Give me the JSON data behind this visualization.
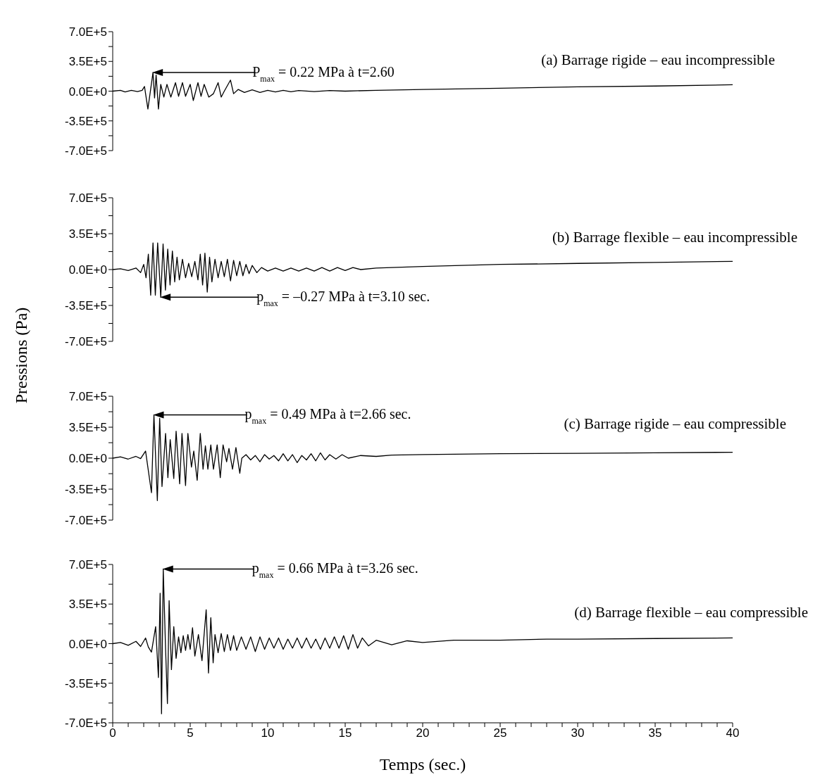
{
  "chart_data": [
    {
      "type": "line",
      "title": "(a) Barrage rigide – eau incompressible",
      "color": "#000000",
      "tick_labels": "y",
      "xlim": [
        0,
        40
      ],
      "x": [
        0,
        0.5,
        0.8,
        1.2,
        1.6,
        1.9,
        2.05,
        2.27,
        2.6,
        2.7,
        2.8,
        2.95,
        3.1,
        3.3,
        3.5,
        3.75,
        4.05,
        4.25,
        4.5,
        4.7,
        5.0,
        5.2,
        5.5,
        5.7,
        5.9,
        6.2,
        6.5,
        6.8,
        7.0,
        7.2,
        7.6,
        7.8,
        8.1,
        8.5,
        9,
        9.5,
        10,
        10.5,
        11,
        11.5,
        12,
        13,
        14,
        15,
        17,
        20,
        25,
        30,
        35,
        40
      ],
      "values": [
        0,
        10000,
        -10000,
        10000,
        -5000,
        10000,
        55000,
        -210000,
        220000,
        -80000,
        190000,
        -210000,
        80000,
        -70000,
        80000,
        -70000,
        100000,
        -60000,
        100000,
        -60000,
        80000,
        -110000,
        100000,
        -60000,
        80000,
        -70000,
        -30000,
        100000,
        -70000,
        0,
        130000,
        -30000,
        20000,
        -15000,
        15000,
        -15000,
        10000,
        -10000,
        10000,
        -8000,
        8000,
        -5000,
        8000,
        0,
        10000,
        20000,
        35000,
        50000,
        60000,
        75000
      ],
      "ylim": [
        -700000,
        700000
      ],
      "yticks": [
        {
          "value": -700000,
          "label": "-7.0E+5"
        },
        {
          "value": -525000,
          "label": null
        },
        {
          "value": -350000,
          "label": "-3.5E+5"
        },
        {
          "value": -175000,
          "label": null
        },
        {
          "value": 0,
          "label": "0.0E+0"
        },
        {
          "value": 175000,
          "label": null
        },
        {
          "value": 350000,
          "label": "3.5E+5"
        },
        {
          "value": 525000,
          "label": null
        },
        {
          "value": 700000,
          "label": "7.0E+5"
        }
      ],
      "annotations": [
        "P$_{max}$ = 0.22 MPa  à  t=2.60"
      ]
    },
    {
      "type": "line",
      "title": "(b) Barrage flexible – eau incompressible",
      "ylabel": "Pressions (Pa)",
      "color": "#000000",
      "tick_labels": "y",
      "xlim": [
        0,
        40
      ],
      "x": [
        0,
        0.5,
        1,
        1.5,
        1.8,
        2.0,
        2.15,
        2.3,
        2.45,
        2.6,
        2.75,
        2.9,
        3.1,
        3.25,
        3.4,
        3.55,
        3.7,
        3.85,
        4.0,
        4.15,
        4.3,
        4.5,
        4.7,
        4.9,
        5.1,
        5.3,
        5.5,
        5.65,
        5.8,
        5.95,
        6.1,
        6.25,
        6.4,
        6.6,
        6.8,
        7.0,
        7.2,
        7.4,
        7.6,
        7.8,
        8.0,
        8.2,
        8.4,
        8.6,
        8.8,
        9.0,
        9.3,
        9.6,
        10,
        10.5,
        11,
        11.5,
        12,
        12.5,
        13,
        13.5,
        14,
        14.5,
        15,
        15.5,
        16,
        17,
        20,
        25,
        30,
        35,
        40
      ],
      "values": [
        0,
        8000,
        -10000,
        15000,
        -30000,
        50000,
        -80000,
        150000,
        -250000,
        260000,
        -250000,
        260000,
        -270000,
        250000,
        -200000,
        200000,
        -150000,
        180000,
        -120000,
        120000,
        -100000,
        100000,
        -80000,
        60000,
        -70000,
        80000,
        -100000,
        150000,
        -150000,
        160000,
        -220000,
        120000,
        -120000,
        100000,
        -80000,
        80000,
        -70000,
        100000,
        -110000,
        90000,
        -60000,
        80000,
        -60000,
        50000,
        -40000,
        40000,
        -30000,
        20000,
        -15000,
        15000,
        -15000,
        15000,
        -15000,
        15000,
        -15000,
        20000,
        -15000,
        20000,
        -10000,
        20000,
        0,
        15000,
        30000,
        50000,
        60000,
        70000,
        80000
      ],
      "ylim": [
        -700000,
        700000
      ],
      "yticks": [
        {
          "value": -700000,
          "label": "-7.0E+5"
        },
        {
          "value": -525000,
          "label": null
        },
        {
          "value": -350000,
          "label": "-3.5E+5"
        },
        {
          "value": -175000,
          "label": null
        },
        {
          "value": 0,
          "label": "0.0E+0"
        },
        {
          "value": 175000,
          "label": null
        },
        {
          "value": 350000,
          "label": "3.5E+5"
        },
        {
          "value": 525000,
          "label": null
        },
        {
          "value": 700000,
          "label": "7.0E+5"
        }
      ],
      "annotations": [
        "p$_{max}$ = –0.27 MPa  à  t=3.10 sec."
      ]
    },
    {
      "type": "line",
      "title": "(c) Barrage rigide – eau compressible",
      "color": "#000000",
      "tick_labels": "y",
      "xlim": [
        0,
        40
      ],
      "x": [
        0,
        0.5,
        1,
        1.5,
        1.8,
        2.12,
        2.5,
        2.66,
        2.88,
        3.03,
        3.18,
        3.41,
        3.56,
        3.71,
        3.94,
        4.09,
        4.32,
        4.47,
        4.7,
        4.85,
        5.08,
        5.23,
        5.45,
        5.65,
        5.83,
        5.98,
        6.14,
        6.33,
        6.5,
        6.74,
        6.94,
        7.12,
        7.35,
        7.5,
        7.73,
        7.95,
        8.2,
        8.33,
        8.6,
        8.9,
        9.2,
        9.5,
        9.8,
        10.1,
        10.4,
        10.7,
        11,
        11.3,
        11.6,
        11.9,
        12.2,
        12.5,
        12.8,
        13.1,
        13.4,
        13.7,
        14,
        14.4,
        14.8,
        15.2,
        16,
        17,
        18,
        20,
        25,
        30,
        35,
        40
      ],
      "values": [
        0,
        15000,
        -10000,
        20000,
        -5000,
        80000,
        -390000,
        490000,
        -480000,
        450000,
        -320000,
        280000,
        -220000,
        210000,
        -230000,
        305000,
        -290000,
        280000,
        -310000,
        280000,
        -100000,
        80000,
        -250000,
        280000,
        -125000,
        140000,
        -125000,
        150000,
        -125000,
        150000,
        -220000,
        150000,
        -40000,
        110000,
        -125000,
        120000,
        -170000,
        0,
        40000,
        -20000,
        30000,
        -40000,
        40000,
        -10000,
        30000,
        -30000,
        50000,
        -30000,
        40000,
        -50000,
        30000,
        -20000,
        50000,
        -30000,
        60000,
        -20000,
        40000,
        -10000,
        40000,
        0,
        30000,
        20000,
        35000,
        40000,
        50000,
        55000,
        60000,
        67000
      ],
      "ylim": [
        -700000,
        700000
      ],
      "yticks": [
        {
          "value": -700000,
          "label": "-7.0E+5"
        },
        {
          "value": -525000,
          "label": null
        },
        {
          "value": -350000,
          "label": "-3.5E+5"
        },
        {
          "value": -175000,
          "label": null
        },
        {
          "value": 0,
          "label": "0.0E+0"
        },
        {
          "value": 175000,
          "label": null
        },
        {
          "value": 350000,
          "label": "3.5E+5"
        },
        {
          "value": 525000,
          "label": null
        },
        {
          "value": 700000,
          "label": "7.0E+5"
        }
      ],
      "annotations": [
        "p$_{max}$ = 0.49 MPa à t=2.66 sec."
      ]
    },
    {
      "type": "line",
      "title": "(d) Barrage flexible – eau compressible",
      "xlabel": "Temps (sec.)",
      "color": "#000000",
      "xlim": [
        0,
        40
      ],
      "xticks": [
        0,
        {
          "value": 1,
          "label": null
        },
        {
          "value": 2,
          "label": null
        },
        {
          "value": 3,
          "label": null
        },
        {
          "value": 4,
          "label": null
        },
        5,
        {
          "value": 6,
          "label": null
        },
        {
          "value": 7,
          "label": null
        },
        {
          "value": 8,
          "label": null
        },
        {
          "value": 9,
          "label": null
        },
        10,
        {
          "value": 11,
          "label": null
        },
        {
          "value": 12,
          "label": null
        },
        {
          "value": 13,
          "label": null
        },
        {
          "value": 14,
          "label": null
        },
        15,
        {
          "value": 16,
          "label": null
        },
        {
          "value": 17,
          "label": null
        },
        {
          "value": 18,
          "label": null
        },
        {
          "value": 19,
          "label": null
        },
        20,
        {
          "value": 21,
          "label": null
        },
        {
          "value": 22,
          "label": null
        },
        {
          "value": 23,
          "label": null
        },
        {
          "value": 24,
          "label": null
        },
        25,
        {
          "value": 26,
          "label": null
        },
        {
          "value": 27,
          "label": null
        },
        {
          "value": 28,
          "label": null
        },
        {
          "value": 29,
          "label": null
        },
        30,
        {
          "value": 31,
          "label": null
        },
        {
          "value": 32,
          "label": null
        },
        {
          "value": 33,
          "label": null
        },
        {
          "value": 34,
          "label": null
        },
        35,
        {
          "value": 36,
          "label": null
        },
        {
          "value": 37,
          "label": null
        },
        {
          "value": 38,
          "label": null
        },
        {
          "value": 39,
          "label": null
        },
        40
      ],
      "x": [
        0,
        0.5,
        1,
        1.5,
        1.8,
        2.12,
        2.3,
        2.5,
        2.77,
        2.95,
        3.06,
        3.15,
        3.26,
        3.4,
        3.53,
        3.64,
        3.79,
        3.94,
        4.09,
        4.25,
        4.4,
        4.55,
        4.7,
        4.85,
        5.0,
        5.15,
        5.3,
        5.53,
        5.76,
        6.03,
        6.18,
        6.33,
        6.48,
        6.6,
        6.8,
        7.0,
        7.2,
        7.4,
        7.6,
        7.8,
        8.0,
        8.3,
        8.6,
        8.9,
        9.2,
        9.5,
        9.8,
        10.1,
        10.4,
        10.7,
        11,
        11.3,
        11.6,
        11.9,
        12.2,
        12.5,
        12.8,
        13.1,
        13.4,
        13.7,
        14,
        14.3,
        14.6,
        14.9,
        15.2,
        15.5,
        15.8,
        16.1,
        16.5,
        17,
        18,
        19,
        20,
        22,
        25,
        28,
        30,
        35,
        40
      ],
      "values": [
        0,
        10000,
        -15000,
        20000,
        -25000,
        50000,
        -30000,
        -75000,
        150000,
        -300000,
        446000,
        -620000,
        660000,
        0,
        -530000,
        380000,
        -230000,
        150000,
        -130000,
        60000,
        -80000,
        70000,
        -60000,
        80000,
        -50000,
        140000,
        -110000,
        80000,
        -150000,
        300000,
        -260000,
        230000,
        -170000,
        80000,
        -80000,
        90000,
        -70000,
        80000,
        -60000,
        70000,
        -60000,
        60000,
        -50000,
        60000,
        -70000,
        60000,
        -50000,
        50000,
        -40000,
        50000,
        -50000,
        40000,
        -40000,
        50000,
        -40000,
        50000,
        -40000,
        40000,
        -50000,
        50000,
        -40000,
        60000,
        -40000,
        70000,
        -50000,
        80000,
        -40000,
        50000,
        -20000,
        30000,
        -10000,
        25000,
        10000,
        30000,
        30000,
        40000,
        40000,
        45000,
        50000
      ],
      "ylim": [
        -700000,
        700000
      ],
      "yticks": [
        {
          "value": -700000,
          "label": "-7.0E+5"
        },
        {
          "value": -525000,
          "label": null
        },
        {
          "value": -350000,
          "label": "-3.5E+5"
        },
        {
          "value": -175000,
          "label": null
        },
        {
          "value": 0,
          "label": "0.0E+0"
        },
        {
          "value": 175000,
          "label": null
        },
        {
          "value": 350000,
          "label": "3.5E+5"
        },
        {
          "value": 525000,
          "label": null
        },
        {
          "value": 700000,
          "label": "7.0E+5"
        }
      ],
      "annotations": [
        "p$_{max}$ = 0.66 MPa à t=3.26 sec."
      ]
    }
  ]
}
